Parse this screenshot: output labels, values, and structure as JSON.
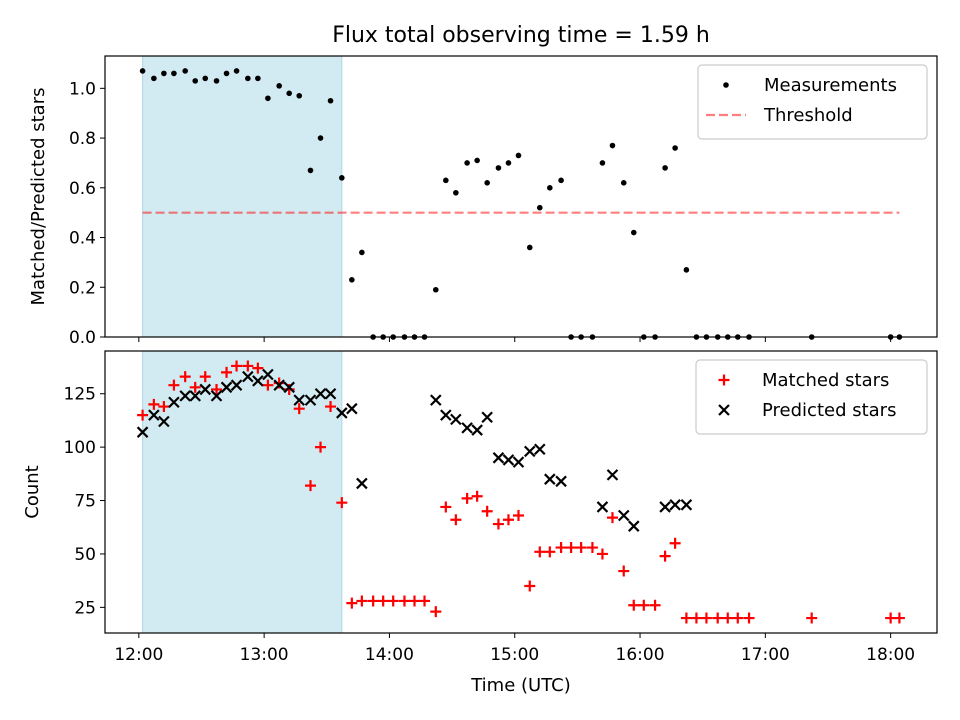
{
  "title": "Flux total observing time = 1.59 h",
  "colors": {
    "shade": "#add8e6",
    "threshold": "#ff0000",
    "measurement": "#000000",
    "matched": "#ff0000",
    "predicted": "#000000"
  },
  "chart_data": [
    {
      "type": "scatter",
      "panel": "top",
      "ylabel": "Matched/Predicted stars",
      "xlabel": "",
      "xlim": [
        11.73,
        18.37
      ],
      "ylim": [
        0,
        1.13
      ],
      "yticks": [
        0.0,
        0.2,
        0.4,
        0.6,
        0.8,
        1.0
      ],
      "ytick_labels": [
        "0.0",
        "0.2",
        "0.4",
        "0.6",
        "0.8",
        "1.0"
      ],
      "shaded_span_x": [
        12.03,
        13.62
      ],
      "grid": false,
      "legend_position": "upper right",
      "threshold": {
        "name": "Threshold",
        "y": 0.5,
        "x": [
          12.03,
          18.07
        ],
        "style": "dashed"
      },
      "series": [
        {
          "name": "Measurements",
          "marker": "dot",
          "x": [
            12.03,
            12.12,
            12.2,
            12.28,
            12.37,
            12.45,
            12.53,
            12.62,
            12.7,
            12.78,
            12.87,
            12.95,
            13.03,
            13.12,
            13.2,
            13.28,
            13.37,
            13.45,
            13.53,
            13.62,
            13.7,
            13.78,
            13.87,
            13.95,
            14.03,
            14.12,
            14.2,
            14.28,
            14.37,
            14.45,
            14.53,
            14.62,
            14.7,
            14.78,
            14.87,
            14.95,
            15.03,
            15.12,
            15.2,
            15.28,
            15.37,
            15.45,
            15.53,
            15.62,
            15.7,
            15.78,
            15.87,
            15.95,
            16.03,
            16.12,
            16.2,
            16.28,
            16.37,
            16.45,
            16.53,
            16.62,
            16.7,
            16.78,
            16.87,
            17.37,
            18.0,
            18.07
          ],
          "y": [
            1.07,
            1.04,
            1.06,
            1.06,
            1.07,
            1.03,
            1.04,
            1.03,
            1.06,
            1.07,
            1.04,
            1.04,
            0.96,
            1.01,
            0.98,
            0.97,
            0.67,
            0.8,
            0.95,
            0.64,
            0.23,
            0.34,
            0.0,
            0.0,
            0.0,
            0.0,
            0.0,
            0.0,
            0.19,
            0.63,
            0.58,
            0.7,
            0.71,
            0.62,
            0.68,
            0.7,
            0.73,
            0.36,
            0.52,
            0.6,
            0.63,
            0.0,
            0.0,
            0.0,
            0.7,
            0.77,
            0.62,
            0.42,
            0.0,
            0.0,
            0.68,
            0.76,
            0.27,
            0.0,
            0.0,
            0.0,
            0.0,
            0.0,
            0.0,
            0.0,
            0.0,
            0.0
          ]
        }
      ]
    },
    {
      "type": "scatter",
      "panel": "bottom",
      "ylabel": "Count",
      "xlabel": "Time (UTC)",
      "xlim": [
        11.73,
        18.37
      ],
      "ylim": [
        13,
        145
      ],
      "yticks": [
        25,
        50,
        75,
        100,
        125
      ],
      "ytick_labels": [
        "25",
        "50",
        "75",
        "100",
        "125"
      ],
      "xticks": [
        12,
        13,
        14,
        15,
        16,
        17,
        18
      ],
      "xtick_labels": [
        "12:00",
        "13:00",
        "14:00",
        "15:00",
        "16:00",
        "17:00",
        "18:00"
      ],
      "shaded_span_x": [
        12.03,
        13.62
      ],
      "grid": false,
      "legend_position": "upper right",
      "series": [
        {
          "name": "Matched stars",
          "marker": "plus",
          "x": [
            12.03,
            12.12,
            12.2,
            12.28,
            12.37,
            12.45,
            12.53,
            12.62,
            12.7,
            12.78,
            12.87,
            12.95,
            13.03,
            13.12,
            13.2,
            13.28,
            13.37,
            13.45,
            13.53,
            13.62,
            13.7,
            13.78,
            13.87,
            13.95,
            14.03,
            14.12,
            14.2,
            14.28,
            14.37,
            14.45,
            14.53,
            14.62,
            14.7,
            14.78,
            14.87,
            14.95,
            15.03,
            15.12,
            15.2,
            15.28,
            15.37,
            15.45,
            15.53,
            15.62,
            15.7,
            15.78,
            15.87,
            15.95,
            16.03,
            16.12,
            16.2,
            16.28,
            16.37,
            16.45,
            16.53,
            16.62,
            16.7,
            16.78,
            16.87,
            17.37,
            18.0,
            18.07
          ],
          "y": [
            115,
            120,
            119,
            129,
            133,
            128,
            133,
            127,
            135,
            138,
            138,
            137,
            129,
            130,
            127,
            118,
            82,
            100,
            119,
            74,
            27,
            28,
            28,
            28,
            28,
            28,
            28,
            28,
            23,
            72,
            66,
            76,
            77,
            70,
            64,
            66,
            68,
            35,
            51,
            51,
            53,
            53,
            53,
            53,
            50,
            67,
            42,
            26,
            26,
            26,
            49,
            55,
            20,
            20,
            20,
            20,
            20,
            20,
            20,
            20,
            20,
            20
          ]
        },
        {
          "name": "Predicted stars",
          "marker": "x",
          "x": [
            12.03,
            12.12,
            12.2,
            12.28,
            12.37,
            12.45,
            12.53,
            12.62,
            12.7,
            12.78,
            12.87,
            12.95,
            13.03,
            13.12,
            13.2,
            13.28,
            13.37,
            13.45,
            13.53,
            13.62,
            13.7,
            13.78,
            14.37,
            14.45,
            14.53,
            14.62,
            14.7,
            14.78,
            14.87,
            14.95,
            15.03,
            15.12,
            15.2,
            15.28,
            15.37,
            15.7,
            15.78,
            15.87,
            15.95,
            16.2,
            16.28,
            16.37
          ],
          "y": [
            107,
            115,
            112,
            121,
            124,
            124,
            127,
            124,
            128,
            129,
            133,
            131,
            134,
            129,
            128,
            122,
            122,
            125,
            125,
            116,
            118,
            83,
            122,
            115,
            113,
            109,
            108,
            114,
            95,
            94,
            93,
            98,
            99,
            85,
            84,
            72,
            87,
            68,
            63,
            72,
            73,
            73
          ]
        }
      ]
    }
  ]
}
